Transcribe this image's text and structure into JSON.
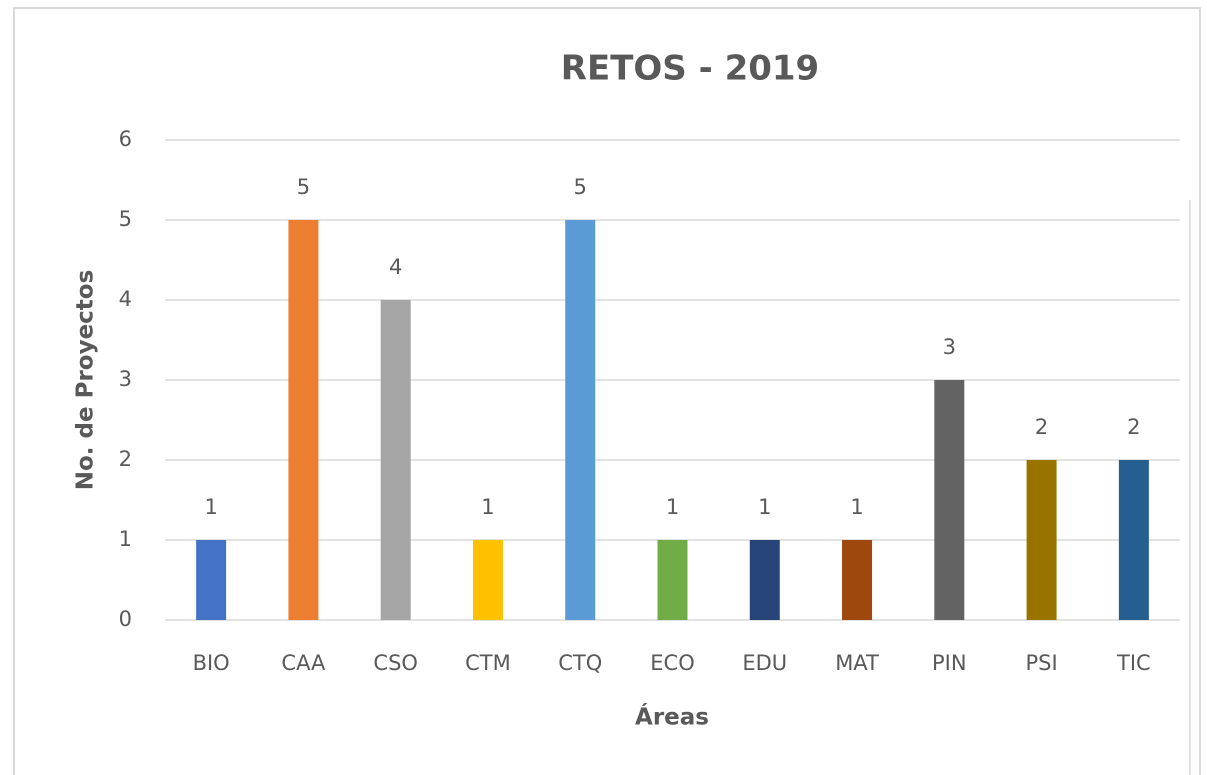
{
  "chart_data": {
    "type": "bar",
    "title": "RETOS - 2019",
    "xlabel": "Áreas",
    "ylabel": "No. de Proyectos",
    "categories": [
      "BIO",
      "CAA",
      "CSO",
      "CTM",
      "CTQ",
      "ECO",
      "EDU",
      "MAT",
      "PIN",
      "PSI",
      "TIC"
    ],
    "values": [
      1,
      5,
      4,
      1,
      5,
      1,
      1,
      1,
      3,
      2,
      2
    ],
    "colors": [
      "#4472c4",
      "#ed7d31",
      "#a5a5a5",
      "#ffc000",
      "#5b9bd5",
      "#70ad47",
      "#264478",
      "#9e480e",
      "#636363",
      "#997300",
      "#255e91"
    ],
    "ylim": [
      0,
      6
    ],
    "yticks": [
      0,
      1,
      2,
      3,
      4,
      5,
      6
    ],
    "grid": true
  }
}
